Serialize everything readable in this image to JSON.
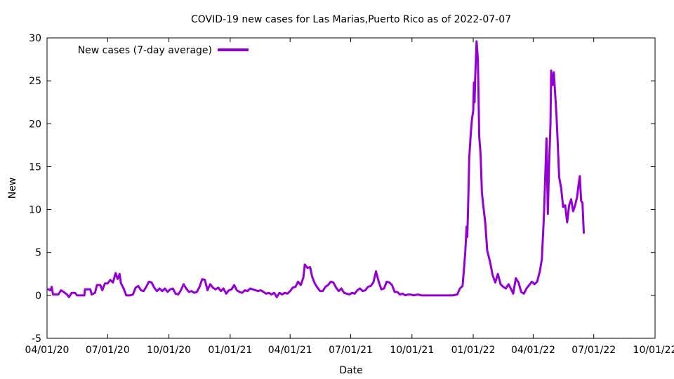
{
  "chart_data": {
    "type": "line",
    "title": "COVID-19 new cases for Las Marias,Puerto Rico as of 2022-07-07",
    "xlabel": "Date",
    "ylabel": "New",
    "ylim": [
      -5,
      30
    ],
    "xlim": [
      "2020-04-01",
      "2022-10-01"
    ],
    "yticks": [
      -5,
      0,
      5,
      10,
      15,
      20,
      25,
      30
    ],
    "xticks": [
      {
        "date": "2020-04-01",
        "label": "04/01/20"
      },
      {
        "date": "2020-07-01",
        "label": "07/01/20"
      },
      {
        "date": "2020-10-01",
        "label": "10/01/20"
      },
      {
        "date": "2021-01-01",
        "label": "01/01/21"
      },
      {
        "date": "2021-04-01",
        "label": "04/01/21"
      },
      {
        "date": "2021-07-01",
        "label": "07/01/21"
      },
      {
        "date": "2021-10-01",
        "label": "10/01/21"
      },
      {
        "date": "2022-01-01",
        "label": "01/01/22"
      },
      {
        "date": "2022-04-01",
        "label": "04/01/22"
      },
      {
        "date": "2022-07-01",
        "label": "07/01/22"
      },
      {
        "date": "2022-10-01",
        "label": "10/01/22"
      }
    ],
    "grid": false,
    "legend": "top-left",
    "series": [
      {
        "name": "New cases (7-day average)",
        "color": "#9400d3",
        "points": [
          [
            "2020-04-03",
            0.7
          ],
          [
            "2020-04-06",
            0.6
          ],
          [
            "2020-04-08",
            1.0
          ],
          [
            "2020-04-10",
            0.1
          ],
          [
            "2020-04-18",
            0.1
          ],
          [
            "2020-04-22",
            0.6
          ],
          [
            "2020-04-26",
            0.4
          ],
          [
            "2020-05-01",
            0.1
          ],
          [
            "2020-05-04",
            -0.2
          ],
          [
            "2020-05-08",
            0.3
          ],
          [
            "2020-05-13",
            0.3
          ],
          [
            "2020-05-16",
            0.0
          ],
          [
            "2020-05-22",
            0.0
          ],
          [
            "2020-05-27",
            0.0
          ],
          [
            "2020-05-28",
            0.7
          ],
          [
            "2020-06-05",
            0.7
          ],
          [
            "2020-06-07",
            0.1
          ],
          [
            "2020-06-12",
            0.3
          ],
          [
            "2020-06-15",
            1.2
          ],
          [
            "2020-06-20",
            1.2
          ],
          [
            "2020-06-23",
            0.6
          ],
          [
            "2020-06-27",
            1.4
          ],
          [
            "2020-07-01",
            1.4
          ],
          [
            "2020-07-05",
            1.8
          ],
          [
            "2020-07-09",
            1.5
          ],
          [
            "2020-07-13",
            2.6
          ],
          [
            "2020-07-16",
            1.9
          ],
          [
            "2020-07-19",
            2.5
          ],
          [
            "2020-07-21",
            1.4
          ],
          [
            "2020-07-25",
            0.8
          ],
          [
            "2020-07-29",
            0.0
          ],
          [
            "2020-08-04",
            0.0
          ],
          [
            "2020-08-08",
            0.1
          ],
          [
            "2020-08-12",
            0.9
          ],
          [
            "2020-08-16",
            1.1
          ],
          [
            "2020-08-20",
            0.6
          ],
          [
            "2020-08-24",
            0.5
          ],
          [
            "2020-08-28",
            1.0
          ],
          [
            "2020-09-01",
            1.6
          ],
          [
            "2020-09-05",
            1.5
          ],
          [
            "2020-09-09",
            0.9
          ],
          [
            "2020-09-13",
            0.5
          ],
          [
            "2020-09-17",
            0.8
          ],
          [
            "2020-09-21",
            0.5
          ],
          [
            "2020-09-25",
            0.8
          ],
          [
            "2020-09-29",
            0.4
          ],
          [
            "2020-10-03",
            0.7
          ],
          [
            "2020-10-07",
            0.8
          ],
          [
            "2020-10-11",
            0.2
          ],
          [
            "2020-10-15",
            0.1
          ],
          [
            "2020-10-19",
            0.6
          ],
          [
            "2020-10-23",
            1.3
          ],
          [
            "2020-10-27",
            0.8
          ],
          [
            "2020-10-31",
            0.4
          ],
          [
            "2020-11-04",
            0.5
          ],
          [
            "2020-11-08",
            0.3
          ],
          [
            "2020-11-12",
            0.4
          ],
          [
            "2020-11-16",
            1.0
          ],
          [
            "2020-11-20",
            1.9
          ],
          [
            "2020-11-24",
            1.8
          ],
          [
            "2020-11-28",
            0.6
          ],
          [
            "2020-12-02",
            1.3
          ],
          [
            "2020-12-06",
            0.9
          ],
          [
            "2020-12-10",
            0.7
          ],
          [
            "2020-12-14",
            0.9
          ],
          [
            "2020-12-18",
            0.5
          ],
          [
            "2020-12-22",
            0.8
          ],
          [
            "2020-12-26",
            0.2
          ],
          [
            "2020-12-30",
            0.6
          ],
          [
            "2021-01-03",
            0.7
          ],
          [
            "2021-01-07",
            1.2
          ],
          [
            "2021-01-11",
            0.6
          ],
          [
            "2021-01-15",
            0.4
          ],
          [
            "2021-01-19",
            0.3
          ],
          [
            "2021-01-23",
            0.6
          ],
          [
            "2021-01-27",
            0.5
          ],
          [
            "2021-01-31",
            0.8
          ],
          [
            "2021-02-04",
            0.7
          ],
          [
            "2021-02-08",
            0.6
          ],
          [
            "2021-02-12",
            0.5
          ],
          [
            "2021-02-16",
            0.6
          ],
          [
            "2021-02-20",
            0.4
          ],
          [
            "2021-02-24",
            0.2
          ],
          [
            "2021-02-28",
            0.3
          ],
          [
            "2021-03-04",
            0.1
          ],
          [
            "2021-03-08",
            0.3
          ],
          [
            "2021-03-12",
            -0.2
          ],
          [
            "2021-03-16",
            0.3
          ],
          [
            "2021-03-20",
            0.1
          ],
          [
            "2021-03-24",
            0.3
          ],
          [
            "2021-03-28",
            0.2
          ],
          [
            "2021-04-01",
            0.5
          ],
          [
            "2021-04-05",
            0.9
          ],
          [
            "2021-04-09",
            1.0
          ],
          [
            "2021-04-13",
            1.6
          ],
          [
            "2021-04-17",
            1.2
          ],
          [
            "2021-04-21",
            2.1
          ],
          [
            "2021-04-23",
            3.6
          ],
          [
            "2021-04-27",
            3.2
          ],
          [
            "2021-05-01",
            3.3
          ],
          [
            "2021-05-04",
            2.2
          ],
          [
            "2021-05-08",
            1.4
          ],
          [
            "2021-05-12",
            0.9
          ],
          [
            "2021-05-16",
            0.5
          ],
          [
            "2021-05-20",
            0.5
          ],
          [
            "2021-05-24",
            1.0
          ],
          [
            "2021-05-28",
            1.2
          ],
          [
            "2021-06-01",
            1.6
          ],
          [
            "2021-06-05",
            1.5
          ],
          [
            "2021-06-09",
            0.9
          ],
          [
            "2021-06-13",
            0.5
          ],
          [
            "2021-06-17",
            0.8
          ],
          [
            "2021-06-21",
            0.3
          ],
          [
            "2021-06-25",
            0.2
          ],
          [
            "2021-06-29",
            0.1
          ],
          [
            "2021-07-03",
            0.3
          ],
          [
            "2021-07-07",
            0.2
          ],
          [
            "2021-07-11",
            0.6
          ],
          [
            "2021-07-15",
            0.8
          ],
          [
            "2021-07-19",
            0.5
          ],
          [
            "2021-07-23",
            0.6
          ],
          [
            "2021-07-27",
            1.0
          ],
          [
            "2021-07-31",
            1.1
          ],
          [
            "2021-08-04",
            1.5
          ],
          [
            "2021-08-08",
            2.8
          ],
          [
            "2021-08-12",
            1.6
          ],
          [
            "2021-08-16",
            0.7
          ],
          [
            "2021-08-20",
            0.8
          ],
          [
            "2021-08-24",
            1.6
          ],
          [
            "2021-08-28",
            1.5
          ],
          [
            "2021-09-01",
            1.2
          ],
          [
            "2021-09-05",
            0.4
          ],
          [
            "2021-09-09",
            0.4
          ],
          [
            "2021-09-13",
            0.1
          ],
          [
            "2021-09-17",
            0.2
          ],
          [
            "2021-09-21",
            0.0
          ],
          [
            "2021-09-25",
            0.1
          ],
          [
            "2021-09-29",
            0.1
          ],
          [
            "2021-10-03",
            0.0
          ],
          [
            "2021-10-10",
            0.1
          ],
          [
            "2021-10-15",
            0.0
          ],
          [
            "2021-11-01",
            0.0
          ],
          [
            "2021-11-15",
            0.0
          ],
          [
            "2021-12-01",
            0.0
          ],
          [
            "2021-12-08",
            0.1
          ],
          [
            "2021-12-12",
            0.8
          ],
          [
            "2021-12-16",
            1.1
          ],
          [
            "2021-12-18",
            3.0
          ],
          [
            "2021-12-20",
            5.0
          ],
          [
            "2021-12-22",
            8.0
          ],
          [
            "2021-12-23",
            6.8
          ],
          [
            "2021-12-24",
            9.4
          ],
          [
            "2021-12-26",
            16.0
          ],
          [
            "2021-12-28",
            18.5
          ],
          [
            "2021-12-30",
            20.5
          ],
          [
            "2022-01-01",
            21.5
          ],
          [
            "2022-01-02",
            24.8
          ],
          [
            "2022-01-03",
            22.5
          ],
          [
            "2022-01-04",
            25.5
          ],
          [
            "2022-01-06",
            29.6
          ],
          [
            "2022-01-08",
            27.5
          ],
          [
            "2022-01-10",
            18.5
          ],
          [
            "2022-01-12",
            16.5
          ],
          [
            "2022-01-14",
            12.0
          ],
          [
            "2022-01-16",
            10.5
          ],
          [
            "2022-01-19",
            8.5
          ],
          [
            "2022-01-22",
            5.2
          ],
          [
            "2022-01-26",
            4.0
          ],
          [
            "2022-01-30",
            2.4
          ],
          [
            "2022-02-03",
            1.5
          ],
          [
            "2022-02-07",
            2.5
          ],
          [
            "2022-02-11",
            1.3
          ],
          [
            "2022-02-15",
            1.0
          ],
          [
            "2022-02-19",
            0.8
          ],
          [
            "2022-02-23",
            1.3
          ],
          [
            "2022-02-27",
            0.7
          ],
          [
            "2022-03-02",
            0.2
          ],
          [
            "2022-03-06",
            2.0
          ],
          [
            "2022-03-10",
            1.5
          ],
          [
            "2022-03-14",
            0.4
          ],
          [
            "2022-03-18",
            0.2
          ],
          [
            "2022-03-22",
            0.8
          ],
          [
            "2022-03-26",
            1.2
          ],
          [
            "2022-03-30",
            1.6
          ],
          [
            "2022-04-03",
            1.3
          ],
          [
            "2022-04-07",
            1.6
          ],
          [
            "2022-04-11",
            2.8
          ],
          [
            "2022-04-14",
            4.2
          ],
          [
            "2022-04-17",
            9.0
          ],
          [
            "2022-04-19",
            13.5
          ],
          [
            "2022-04-21",
            18.3
          ],
          [
            "2022-04-22",
            14.0
          ],
          [
            "2022-04-23",
            9.5
          ],
          [
            "2022-04-25",
            15.5
          ],
          [
            "2022-04-27",
            20.0
          ],
          [
            "2022-04-28",
            26.2
          ],
          [
            "2022-04-30",
            24.5
          ],
          [
            "2022-05-02",
            26.0
          ],
          [
            "2022-05-04",
            23.5
          ],
          [
            "2022-05-06",
            21.0
          ],
          [
            "2022-05-08",
            17.5
          ],
          [
            "2022-05-10",
            13.8
          ],
          [
            "2022-05-13",
            12.5
          ],
          [
            "2022-05-16",
            10.3
          ],
          [
            "2022-05-19",
            10.5
          ],
          [
            "2022-05-22",
            8.5
          ],
          [
            "2022-05-25",
            10.5
          ],
          [
            "2022-05-28",
            11.2
          ],
          [
            "2022-05-31",
            9.8
          ],
          [
            "2022-06-03",
            10.5
          ],
          [
            "2022-06-06",
            11.5
          ],
          [
            "2022-06-08",
            12.8
          ],
          [
            "2022-06-10",
            13.9
          ],
          [
            "2022-06-12",
            11.0
          ],
          [
            "2022-06-14",
            10.8
          ],
          [
            "2022-06-16",
            7.3
          ]
        ]
      }
    ]
  }
}
